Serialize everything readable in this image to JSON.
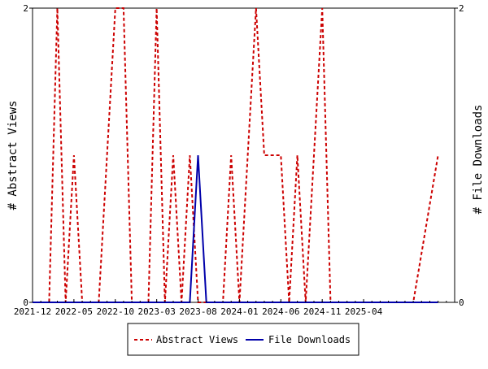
{
  "chart_data": {
    "type": "line",
    "title": "",
    "ylabel_left": "# Abstract Views",
    "ylabel_right": "# File Downloads",
    "ylim_left": [
      0,
      2
    ],
    "ylim_right": [
      0,
      2
    ],
    "y_ticks_left": [
      "0",
      "2"
    ],
    "y_ticks_right": [
      "0",
      "2"
    ],
    "x_range": [
      "2021-12",
      "2026-03"
    ],
    "x_ticks": [
      "2021-12",
      "2022-05",
      "2022-10",
      "2023-03",
      "2023-08",
      "2024-01",
      "2024-06",
      "2024-11",
      "2025-04"
    ],
    "legend_position": "bottom-center",
    "series": [
      {
        "name": "Abstract Views",
        "axis": "left",
        "color": "#cc0000",
        "style": "dashed",
        "points": [
          [
            "2021-12",
            0
          ],
          [
            "2022-01",
            0
          ],
          [
            "2022-02",
            0
          ],
          [
            "2022-03",
            2
          ],
          [
            "2022-04",
            0
          ],
          [
            "2022-05",
            1
          ],
          [
            "2022-06",
            0
          ],
          [
            "2022-07",
            0
          ],
          [
            "2022-08",
            0
          ],
          [
            "2022-09",
            1
          ],
          [
            "2022-10",
            2
          ],
          [
            "2022-11",
            2
          ],
          [
            "2022-12",
            0
          ],
          [
            "2023-01",
            0
          ],
          [
            "2023-02",
            0
          ],
          [
            "2023-03",
            2
          ],
          [
            "2023-04",
            0
          ],
          [
            "2023-05",
            1
          ],
          [
            "2023-06",
            0
          ],
          [
            "2023-07",
            1
          ],
          [
            "2023-08",
            0
          ],
          [
            "2023-09",
            0
          ],
          [
            "2023-10",
            0
          ],
          [
            "2023-11",
            0
          ],
          [
            "2023-12",
            1
          ],
          [
            "2024-01",
            0
          ],
          [
            "2024-02",
            1
          ],
          [
            "2024-03",
            2
          ],
          [
            "2024-04",
            1
          ],
          [
            "2024-05",
            1
          ],
          [
            "2024-06",
            1
          ],
          [
            "2024-07",
            0
          ],
          [
            "2024-08",
            1
          ],
          [
            "2024-09",
            0
          ],
          [
            "2024-10",
            1
          ],
          [
            "2024-11",
            2
          ],
          [
            "2024-12",
            0
          ],
          [
            "2025-01",
            0
          ],
          [
            "2025-02",
            0
          ],
          [
            "2025-03",
            0
          ],
          [
            "2025-04",
            0
          ],
          [
            "2025-05",
            0
          ],
          [
            "2025-06",
            0
          ],
          [
            "2025-07",
            0
          ],
          [
            "2025-08",
            0
          ],
          [
            "2025-09",
            0
          ],
          [
            "2025-10",
            0
          ],
          [
            "2026-01",
            1
          ]
        ]
      },
      {
        "name": "File Downloads",
        "axis": "right",
        "color": "#0000aa",
        "style": "solid",
        "points": [
          [
            "2021-12",
            0
          ],
          [
            "2023-06",
            0
          ],
          [
            "2023-07",
            0
          ],
          [
            "2023-08",
            1
          ],
          [
            "2023-09",
            0
          ],
          [
            "2023-10",
            0
          ],
          [
            "2026-01",
            0
          ]
        ]
      }
    ]
  }
}
